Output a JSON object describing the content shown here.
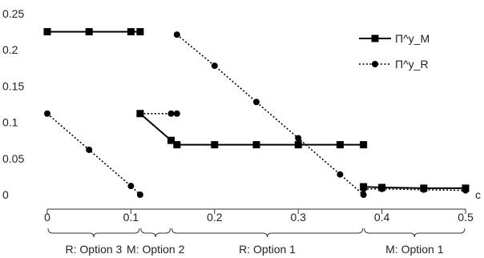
{
  "chart_data": {
    "type": "line",
    "title": "",
    "xlabel": "c",
    "ylabel": "",
    "xlim": [
      0,
      0.5
    ],
    "ylim": [
      0,
      0.25
    ],
    "x_ticks": [
      0,
      0.1,
      0.2,
      0.3,
      0.4,
      0.5
    ],
    "x_tick_labels": [
      "0",
      "0.1",
      "0.2",
      "0.3",
      "0.4",
      "0.5"
    ],
    "y_ticks": [
      0,
      0.05,
      0.1,
      0.15,
      0.2,
      0.25
    ],
    "y_tick_labels": [
      "0",
      "0.05",
      "0.1",
      "0.15",
      "0.2",
      "0.25"
    ],
    "grid": false,
    "legend_position": "top-right",
    "series": [
      {
        "name": "Π^y_M",
        "style": "solid",
        "marker": "square",
        "color": "#000000",
        "segments": [
          [
            [
              0,
              0.225
            ],
            [
              0.05,
              0.225
            ],
            [
              0.1,
              0.225
            ],
            [
              0.111,
              0.225
            ]
          ],
          [
            [
              0.111,
              0.112
            ],
            [
              0.148,
              0.075
            ],
            [
              0.155,
              0.069
            ],
            [
              0.2,
              0.069
            ],
            [
              0.25,
              0.069
            ],
            [
              0.3,
              0.069
            ],
            [
              0.35,
              0.069
            ],
            [
              0.378,
              0.069
            ]
          ],
          [
            [
              0.378,
              0.011
            ],
            [
              0.4,
              0.01
            ],
            [
              0.45,
              0.009
            ],
            [
              0.5,
              0.009
            ]
          ]
        ]
      },
      {
        "name": "Π^y_R",
        "style": "dotted",
        "marker": "circle",
        "color": "#000000",
        "segments": [
          [
            [
              0,
              0.112
            ],
            [
              0.05,
              0.062
            ],
            [
              0.1,
              0.012
            ],
            [
              0.111,
              0.0
            ]
          ],
          [
            [
              0.111,
              0.112
            ],
            [
              0.148,
              0.112
            ],
            [
              0.155,
              0.112
            ]
          ],
          [
            [
              0.155,
              0.221
            ],
            [
              0.2,
              0.178
            ],
            [
              0.25,
              0.128
            ],
            [
              0.3,
              0.078
            ],
            [
              0.35,
              0.028
            ],
            [
              0.378,
              0.0
            ]
          ],
          [
            [
              0.378,
              0.008
            ],
            [
              0.4,
              0.008
            ],
            [
              0.45,
              0.007
            ],
            [
              0.5,
              0.006
            ]
          ]
        ]
      }
    ],
    "region_brackets": [
      {
        "label": "R: Option 3",
        "from": 0,
        "to": 0.111
      },
      {
        "label": "M: Option 2",
        "from": 0.111,
        "to": 0.148
      },
      {
        "label": "R: Option 1",
        "from": 0.148,
        "to": 0.378
      },
      {
        "label": "M: Option 1",
        "from": 0.378,
        "to": 0.5
      }
    ]
  }
}
